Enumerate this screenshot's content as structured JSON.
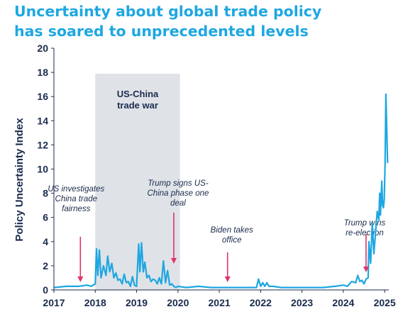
{
  "title": {
    "line1": "Uncertainty about global trade policy",
    "line2": "has soared to unprecedented levels"
  },
  "colors": {
    "title": "#1ea7e1",
    "series": "#1ea7e1",
    "band": "#dfe3e8",
    "arrow": "#e0336b",
    "text": "#1a2b4c"
  },
  "chart_data": {
    "type": "line",
    "ylabel": "Policy Uncertainty Index",
    "xlabel": "",
    "xlim": [
      2017,
      2025.1
    ],
    "ylim": [
      0,
      20
    ],
    "xticks": [
      "2017",
      "2018",
      "2019",
      "2020",
      "2021",
      "2022",
      "2023",
      "2024",
      "2025"
    ],
    "yticks": [
      "0",
      "2",
      "4",
      "6",
      "8",
      "10",
      "12",
      "14",
      "16",
      "18",
      "20"
    ],
    "grid": false,
    "legend": "none",
    "series": [
      {
        "x": [
          2017.0,
          2017.3,
          2017.6,
          2017.8,
          2017.9,
          2018.0,
          2018.03,
          2018.06,
          2018.1,
          2018.14,
          2018.2,
          2018.26,
          2018.3,
          2018.35,
          2018.4,
          2018.45,
          2018.5,
          2018.55,
          2018.6,
          2018.65,
          2018.7,
          2018.75,
          2018.8,
          2018.85,
          2018.9,
          2018.95,
          2019.0,
          2019.05,
          2019.08,
          2019.12,
          2019.16,
          2019.2,
          2019.25,
          2019.3,
          2019.35,
          2019.4,
          2019.45,
          2019.5,
          2019.55,
          2019.6,
          2019.65,
          2019.7,
          2019.75,
          2019.8,
          2019.85,
          2019.9,
          2019.95,
          2020.0,
          2020.2,
          2020.5,
          2020.8,
          2021.0,
          2021.5,
          2021.9,
          2021.95,
          2022.0,
          2022.05,
          2022.1,
          2022.15,
          2022.2,
          2022.3,
          2022.5,
          2022.8,
          2023.0,
          2023.5,
          2023.8,
          2024.0,
          2024.1,
          2024.2,
          2024.3,
          2024.35,
          2024.4,
          2024.45,
          2024.5,
          2024.55,
          2024.6,
          2024.62,
          2024.66,
          2024.7,
          2024.74,
          2024.78,
          2024.82,
          2024.86,
          2024.88,
          2024.9,
          2024.93,
          2024.95,
          2024.97,
          2024.99,
          2025.01,
          2025.03,
          2025.05,
          2025.07
        ],
        "values": [
          0.2,
          0.3,
          0.3,
          0.4,
          0.3,
          0.5,
          3.4,
          1.2,
          3.3,
          1.0,
          2.0,
          1.2,
          2.8,
          1.5,
          2.2,
          1.0,
          1.4,
          0.8,
          0.9,
          0.5,
          1.3,
          0.6,
          0.7,
          0.3,
          1.1,
          0.4,
          0.3,
          3.8,
          1.5,
          3.9,
          1.5,
          2.3,
          1.0,
          1.2,
          0.7,
          0.9,
          0.8,
          0.5,
          1.0,
          0.5,
          2.4,
          0.6,
          1.6,
          0.4,
          0.5,
          0.3,
          0.2,
          0.3,
          0.2,
          0.3,
          0.2,
          0.2,
          0.2,
          0.2,
          0.9,
          0.3,
          0.6,
          0.3,
          0.6,
          0.3,
          0.3,
          0.2,
          0.2,
          0.2,
          0.2,
          0.3,
          0.4,
          0.3,
          0.7,
          0.6,
          1.2,
          0.7,
          0.8,
          0.5,
          0.9,
          1.0,
          4.0,
          2.2,
          5.5,
          3.0,
          4.8,
          6.5,
          5.8,
          8.0,
          6.2,
          9.0,
          7.0,
          6.8,
          7.5,
          10.5,
          16.2,
          13.5,
          10.5
        ]
      }
    ],
    "shaded_regions": [
      {
        "x0": 2018.0,
        "x1": 2020.05,
        "label_line1": "US-China",
        "label_line2": "trade war"
      }
    ],
    "annotations": [
      {
        "x": 2017.64,
        "lines": [
          "US investigates",
          "China trade",
          "fairness"
        ]
      },
      {
        "x": 2019.9,
        "lines": [
          "Trump signs US-",
          "China phase one",
          "deal"
        ]
      },
      {
        "x": 2021.2,
        "lines": [
          "Biden takes",
          "office"
        ]
      },
      {
        "x": 2024.55,
        "lines": [
          "Trump wins",
          "re-election"
        ]
      }
    ]
  }
}
